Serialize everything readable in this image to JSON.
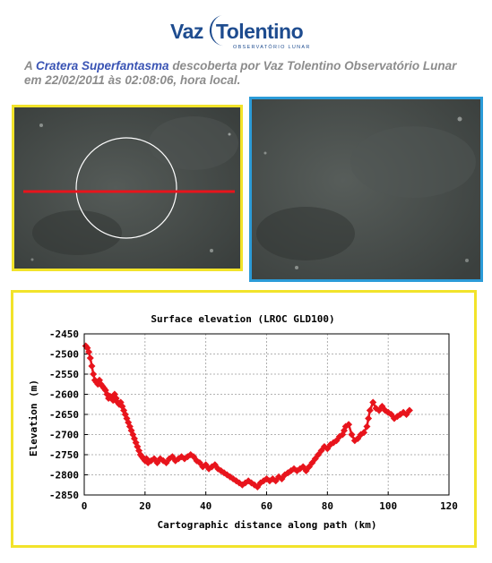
{
  "logo": {
    "brand_left": "Vaz",
    "brand_right": "Tolentino",
    "tagline": "OBSERVATÓRIO LUNAR"
  },
  "caption": {
    "prefix": "A ",
    "crater_name": "Cratera Superfantasma",
    "middle": " descoberta por Vaz Tolentino Observatório Lunar em 22/02/2011 às 02:08:06, hora local."
  },
  "colors": {
    "left_panel_border": "#f2e32a",
    "right_panel_border": "#2b9bd8",
    "chart_frame_border": "#f2e32a",
    "series_color": "#e8141c",
    "profile_line": "#e8141c",
    "crater_circle": "#ffffff"
  },
  "chart_data": {
    "type": "line",
    "title": "Surface elevation (LROC GLD100)",
    "xlabel": "Cartographic distance along path (km)",
    "ylabel": "Elevation (m)",
    "xlim": [
      0,
      120
    ],
    "ylim": [
      -2850,
      -2450
    ],
    "xticks": [
      0,
      20,
      40,
      60,
      80,
      100,
      120
    ],
    "yticks": [
      -2450,
      -2500,
      -2550,
      -2600,
      -2650,
      -2700,
      -2750,
      -2800,
      -2850
    ],
    "grid": true,
    "marker": "diamond",
    "series": [
      {
        "x": [
          0.5,
          1,
          1.5,
          2,
          2.5,
          3,
          3.5,
          4,
          4.5,
          5,
          5.5,
          6,
          6.5,
          7,
          7.5,
          8,
          8.5,
          9,
          9.5,
          10,
          10.5,
          11,
          11.5,
          12,
          12.5,
          13,
          13.5,
          14,
          14.5,
          15,
          15.5,
          16,
          16.5,
          17,
          17.5,
          18,
          18.5,
          19,
          19.5,
          20,
          20.5,
          21,
          22,
          23,
          24,
          25,
          26,
          27,
          28,
          29,
          30,
          31,
          32,
          33,
          34,
          35,
          36,
          37,
          38,
          39,
          40,
          41,
          42,
          43,
          44,
          45,
          46,
          47,
          48,
          49,
          50,
          51,
          52,
          53,
          54,
          55,
          56,
          57,
          58,
          59,
          60,
          61,
          62,
          63,
          64,
          65,
          66,
          67,
          68,
          69,
          70,
          71,
          72,
          73,
          74,
          75,
          76,
          77,
          78,
          79,
          80,
          81,
          82,
          83,
          84,
          85,
          85.5,
          86,
          87,
          88,
          89,
          90,
          91,
          92,
          93,
          93.5,
          94,
          95,
          96,
          97,
          98,
          99,
          100,
          101,
          102,
          103,
          104,
          105,
          106,
          107
        ],
        "y": [
          -2480,
          -2485,
          -2495,
          -2510,
          -2530,
          -2550,
          -2565,
          -2570,
          -2575,
          -2565,
          -2575,
          -2580,
          -2585,
          -2590,
          -2600,
          -2610,
          -2605,
          -2610,
          -2615,
          -2600,
          -2610,
          -2620,
          -2625,
          -2620,
          -2630,
          -2640,
          -2650,
          -2660,
          -2670,
          -2680,
          -2690,
          -2700,
          -2710,
          -2720,
          -2730,
          -2740,
          -2750,
          -2755,
          -2760,
          -2765,
          -2760,
          -2770,
          -2765,
          -2760,
          -2770,
          -2760,
          -2765,
          -2770,
          -2760,
          -2755,
          -2765,
          -2760,
          -2755,
          -2760,
          -2755,
          -2750,
          -2755,
          -2765,
          -2770,
          -2780,
          -2775,
          -2785,
          -2780,
          -2775,
          -2785,
          -2790,
          -2795,
          -2800,
          -2805,
          -2810,
          -2815,
          -2820,
          -2825,
          -2820,
          -2815,
          -2820,
          -2825,
          -2830,
          -2820,
          -2815,
          -2810,
          -2815,
          -2810,
          -2815,
          -2805,
          -2810,
          -2800,
          -2795,
          -2790,
          -2785,
          -2790,
          -2785,
          -2780,
          -2790,
          -2780,
          -2770,
          -2760,
          -2750,
          -2740,
          -2730,
          -2735,
          -2725,
          -2720,
          -2715,
          -2705,
          -2700,
          -2690,
          -2680,
          -2675,
          -2700,
          -2715,
          -2710,
          -2700,
          -2695,
          -2680,
          -2660,
          -2640,
          -2620,
          -2635,
          -2640,
          -2630,
          -2640,
          -2645,
          -2650,
          -2660,
          -2655,
          -2650,
          -2645,
          -2650,
          -2640
        ]
      }
    ]
  }
}
